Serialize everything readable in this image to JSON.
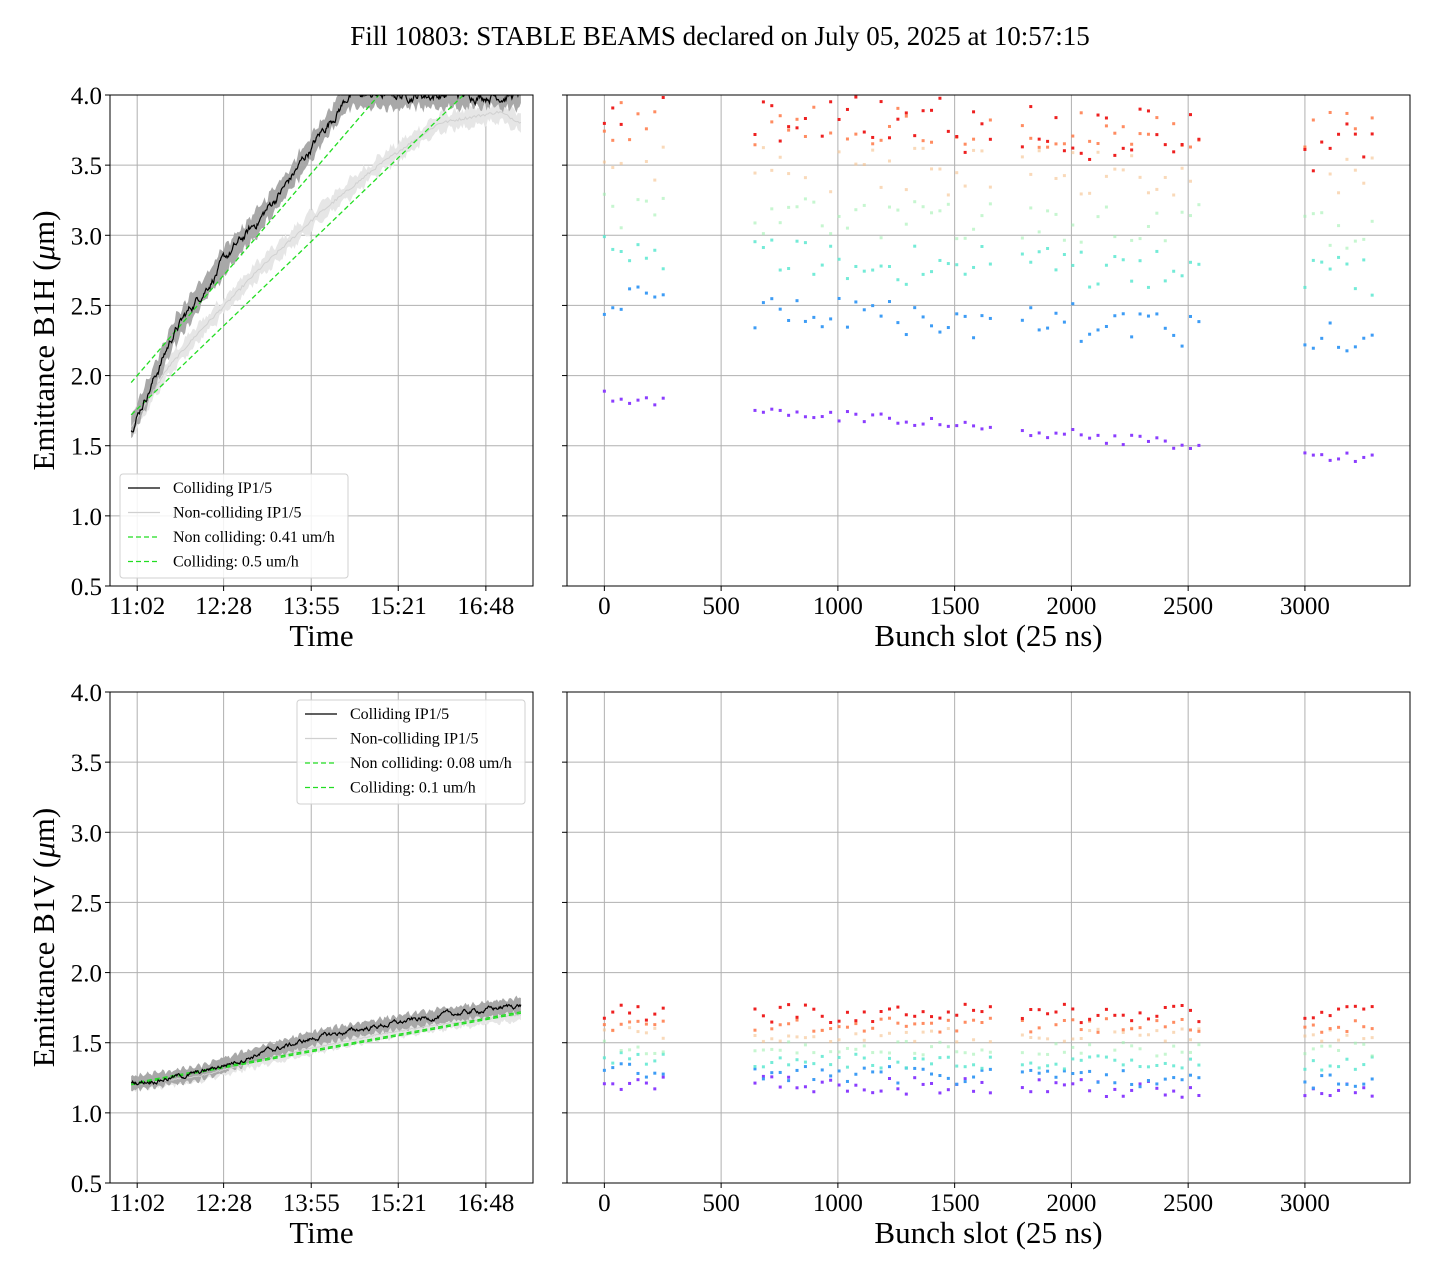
{
  "suptitle": "Fill 10803: STABLE BEAMS declared on July 05, 2025 at 10:57:15",
  "colors": {
    "colliding_line": "#000000",
    "colliding_band": "#a8a8a8",
    "noncolliding_band": "#e6e6e6",
    "noncolliding_line": "#d0d0d0",
    "fit_line": "#22dd22",
    "grid": "#b0b0b0",
    "bunch_palette": [
      "#8b3dff",
      "#3d9cf5",
      "#5ce8d0",
      "#a0f0b0",
      "#f5c08a",
      "#ff8050",
      "#ee2020"
    ]
  },
  "chart_data": [
    {
      "id": "b1h_time",
      "type": "line",
      "xlabel": "Time",
      "ylabel": "Emittance B1H (μm)",
      "ylabel_main": "Emittance B1H (",
      "ylabel_mu": "μ",
      "ylabel_unit": "m)",
      "x_ticks": [
        "11:02",
        "12:28",
        "13:55",
        "15:21",
        "16:48"
      ],
      "x_tick_hours": [
        0,
        1.43,
        2.88,
        4.32,
        5.77
      ],
      "xlim_hours": [
        -0.45,
        6.55
      ],
      "ylim": [
        0.5,
        4.0
      ],
      "y_ticks": [
        "0.5",
        "1.0",
        "1.5",
        "2.0",
        "2.5",
        "3.0",
        "3.5",
        "4.0"
      ],
      "grid": true,
      "legend_position": "lower-left",
      "legend": [
        "Colliding IP1/5",
        "Non-colliding IP1/5",
        "Non colliding: 0.41 um/h",
        "Colliding: 0.5 um/h"
      ],
      "series": [
        {
          "name": "Colliding IP1/5",
          "x_hours": [
            -0.1,
            0.3,
            0.6,
            1.0,
            1.5,
            2.0,
            2.5,
            3.0,
            3.5
          ],
          "values": [
            1.63,
            2.0,
            2.3,
            2.55,
            2.85,
            3.1,
            3.38,
            3.7,
            4.0
          ]
        },
        {
          "name": "Non-colliding IP1/5",
          "x_hours": [
            -0.1,
            0.5,
            1.0,
            2.0,
            3.0,
            4.0,
            5.0,
            6.0,
            6.35
          ],
          "values": [
            1.63,
            2.05,
            2.3,
            2.75,
            3.15,
            3.5,
            3.8,
            3.88,
            3.8
          ]
        },
        {
          "name": "Non colliding: 0.41 um/h",
          "x_hours": [
            -0.1,
            5.4
          ],
          "values": [
            1.72,
            4.0
          ]
        },
        {
          "name": "Colliding: 0.5 um/h",
          "x_hours": [
            -0.1,
            4.0
          ],
          "values": [
            1.95,
            4.0
          ]
        }
      ]
    },
    {
      "id": "b1h_bunch",
      "type": "scatter",
      "xlabel": "Bunch slot (25 ns)",
      "x_ticks": [
        "0",
        "500",
        "1000",
        "1500",
        "2000",
        "2500",
        "3000"
      ],
      "xlim": [
        -160,
        3450
      ],
      "ylim": [
        0.5,
        4.0
      ],
      "grid": true,
      "trains": [
        [
          0,
          280
        ],
        [
          645,
          1670
        ],
        [
          1790,
          2560
        ],
        [
          3000,
          3290
        ]
      ],
      "levels": [
        {
          "band": 0,
          "start": 1.85,
          "end": 1.4,
          "jitter": 0.04
        },
        {
          "band": 1,
          "start": 2.5,
          "end": 2.3,
          "jitter": 0.14
        },
        {
          "band": 2,
          "start": 2.85,
          "end": 2.7,
          "jitter": 0.15
        },
        {
          "band": 3,
          "start": 3.15,
          "end": 3.05,
          "jitter": 0.15
        },
        {
          "band": 4,
          "start": 3.45,
          "end": 3.45,
          "jitter": 0.18
        },
        {
          "band": 5,
          "start": 3.8,
          "end": 3.75,
          "jitter": 0.15
        },
        {
          "band": 6,
          "start": 3.95,
          "end": 3.6,
          "jitter": 0.2
        }
      ]
    },
    {
      "id": "b1v_time",
      "type": "line",
      "xlabel": "Time",
      "ylabel": "Emittance B1V (μm)",
      "ylabel_main": "Emittance B1V (",
      "ylabel_mu": "μ",
      "ylabel_unit": "m)",
      "x_ticks": [
        "11:02",
        "12:28",
        "13:55",
        "15:21",
        "16:48"
      ],
      "x_tick_hours": [
        0,
        1.43,
        2.88,
        4.32,
        5.77
      ],
      "xlim_hours": [
        -0.45,
        6.55
      ],
      "ylim": [
        0.5,
        4.0
      ],
      "y_ticks": [
        "0.5",
        "1.0",
        "1.5",
        "2.0",
        "2.5",
        "3.0",
        "3.5",
        "4.0"
      ],
      "grid": true,
      "legend_position": "upper-right",
      "legend": [
        "Colliding IP1/5",
        "Non-colliding IP1/5",
        "Non colliding: 0.08 um/h",
        "Colliding: 0.1 um/h"
      ],
      "series": [
        {
          "name": "Colliding IP1/5",
          "x_hours": [
            -0.1,
            1.0,
            2.0,
            3.0,
            4.0,
            5.0,
            6.35
          ],
          "values": [
            1.21,
            1.28,
            1.42,
            1.54,
            1.62,
            1.69,
            1.77
          ]
        },
        {
          "name": "Non-colliding IP1/5",
          "x_hours": [
            -0.1,
            1.0,
            2.0,
            3.0,
            4.0,
            5.0,
            6.35
          ],
          "values": [
            1.2,
            1.26,
            1.37,
            1.47,
            1.56,
            1.63,
            1.7
          ]
        },
        {
          "name": "Non colliding: 0.08 um/h",
          "x_hours": [
            -0.1,
            6.35
          ],
          "values": [
            1.2,
            1.71
          ]
        },
        {
          "name": "Colliding: 0.1 um/h",
          "x_hours": [
            -0.1,
            6.35
          ],
          "values": [
            1.21,
            1.72
          ]
        }
      ]
    },
    {
      "id": "b1v_bunch",
      "type": "scatter",
      "xlabel": "Bunch slot (25 ns)",
      "x_ticks": [
        "0",
        "500",
        "1000",
        "1500",
        "2000",
        "2500",
        "3000"
      ],
      "xlim": [
        -160,
        3450
      ],
      "ylim": [
        0.5,
        4.0
      ],
      "grid": true,
      "trains": [
        [
          0,
          280
        ],
        [
          645,
          1670
        ],
        [
          1790,
          2560
        ],
        [
          3000,
          3290
        ]
      ],
      "levels": [
        {
          "band": 0,
          "start": 1.22,
          "end": 1.15,
          "jitter": 0.06
        },
        {
          "band": 1,
          "start": 1.3,
          "end": 1.22,
          "jitter": 0.06
        },
        {
          "band": 2,
          "start": 1.38,
          "end": 1.35,
          "jitter": 0.05
        },
        {
          "band": 3,
          "start": 1.47,
          "end": 1.45,
          "jitter": 0.05
        },
        {
          "band": 4,
          "start": 1.56,
          "end": 1.55,
          "jitter": 0.05
        },
        {
          "band": 5,
          "start": 1.63,
          "end": 1.62,
          "jitter": 0.05
        },
        {
          "band": 6,
          "start": 1.7,
          "end": 1.72,
          "jitter": 0.07
        }
      ]
    }
  ]
}
